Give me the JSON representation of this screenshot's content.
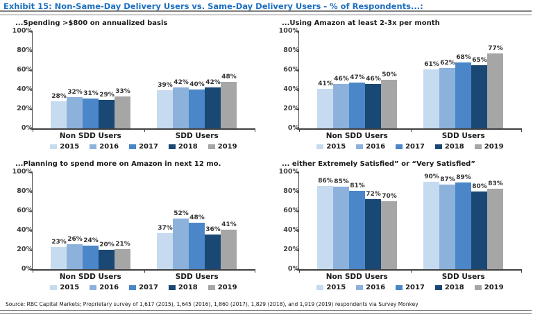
{
  "header": {
    "title": "Exhibit 15: Non-Same-Day Delivery Users vs. Same-Day Delivery Users - % of Respondents...:"
  },
  "footer": {
    "source": "Source: RBC Capital Markets; Proprietary survey of 1,617 (2015), 1,645 (2016), 1,860 (2017), 1,829 (2018), and 1,919 (2019) respondents via Survey Monkey"
  },
  "colors": {
    "title_blue": "#1D70C0",
    "axis": "#404040",
    "year_2015": "#C7DBF0",
    "year_2016": "#8CB2DC",
    "year_2017": "#4A86C8",
    "year_2018": "#1A4875",
    "year_2019": "#A6A6A6"
  },
  "chart_data": [
    {
      "type": "bar",
      "title": "...Spending >$800 on annualized basis",
      "categories": [
        "Non SDD Users",
        "SDD Users"
      ],
      "series": [
        {
          "name": "2015",
          "color": "#C7DBF0",
          "values": [
            28,
            39
          ]
        },
        {
          "name": "2016",
          "color": "#8CB2DC",
          "values": [
            32,
            42
          ]
        },
        {
          "name": "2017",
          "color": "#4A86C8",
          "values": [
            31,
            40
          ]
        },
        {
          "name": "2018",
          "color": "#1A4875",
          "values": [
            29,
            42
          ]
        },
        {
          "name": "2019",
          "color": "#A6A6A6",
          "values": [
            33,
            48
          ]
        }
      ],
      "ylim": [
        0,
        100
      ],
      "yticks": [
        "100%",
        "80%",
        "60%",
        "40%",
        "20%",
        "0%"
      ],
      "grid": false,
      "legend_position": "bottom"
    },
    {
      "type": "bar",
      "title": "...Using Amazon at least 2-3x per month",
      "categories": [
        "Non SDD Users",
        "SDD Users"
      ],
      "series": [
        {
          "name": "2015",
          "color": "#C7DBF0",
          "values": [
            41,
            61
          ]
        },
        {
          "name": "2016",
          "color": "#8CB2DC",
          "values": [
            46,
            62
          ]
        },
        {
          "name": "2017",
          "color": "#4A86C8",
          "values": [
            47,
            68
          ]
        },
        {
          "name": "2018",
          "color": "#1A4875",
          "values": [
            46,
            65
          ]
        },
        {
          "name": "2019",
          "color": "#A6A6A6",
          "values": [
            50,
            77
          ]
        }
      ],
      "ylim": [
        0,
        100
      ],
      "yticks": [
        "100%",
        "80%",
        "60%",
        "40%",
        "20%",
        "0%"
      ],
      "grid": false,
      "legend_position": "bottom"
    },
    {
      "type": "bar",
      "title": "...Planning to spend more on Amazon in next 12 mo.",
      "categories": [
        "Non SDD Users",
        "SDD Users"
      ],
      "series": [
        {
          "name": "2015",
          "color": "#C7DBF0",
          "values": [
            23,
            37
          ]
        },
        {
          "name": "2016",
          "color": "#8CB2DC",
          "values": [
            26,
            52
          ]
        },
        {
          "name": "2017",
          "color": "#4A86C8",
          "values": [
            24,
            48
          ]
        },
        {
          "name": "2018",
          "color": "#1A4875",
          "values": [
            20,
            36
          ]
        },
        {
          "name": "2019",
          "color": "#A6A6A6",
          "values": [
            21,
            41
          ]
        }
      ],
      "ylim": [
        0,
        100
      ],
      "yticks": [
        "100%",
        "80%",
        "60%",
        "40%",
        "20%",
        "0%"
      ],
      "grid": false,
      "legend_position": "bottom"
    },
    {
      "type": "bar",
      "title": "... either Extremely Satisfied” or “Very Satisfied”",
      "categories": [
        "Non SDD Users",
        "SDD Users"
      ],
      "series": [
        {
          "name": "2015",
          "color": "#C7DBF0",
          "values": [
            86,
            90
          ]
        },
        {
          "name": "2016",
          "color": "#8CB2DC",
          "values": [
            85,
            87
          ]
        },
        {
          "name": "2017",
          "color": "#4A86C8",
          "values": [
            81,
            89
          ]
        },
        {
          "name": "2018",
          "color": "#1A4875",
          "values": [
            72,
            80
          ]
        },
        {
          "name": "2019",
          "color": "#A6A6A6",
          "values": [
            70,
            83
          ]
        }
      ],
      "ylim": [
        0,
        100
      ],
      "yticks": [
        "100%",
        "80%",
        "60%",
        "40%",
        "20%",
        "0%"
      ],
      "grid": false,
      "legend_position": "bottom"
    }
  ]
}
